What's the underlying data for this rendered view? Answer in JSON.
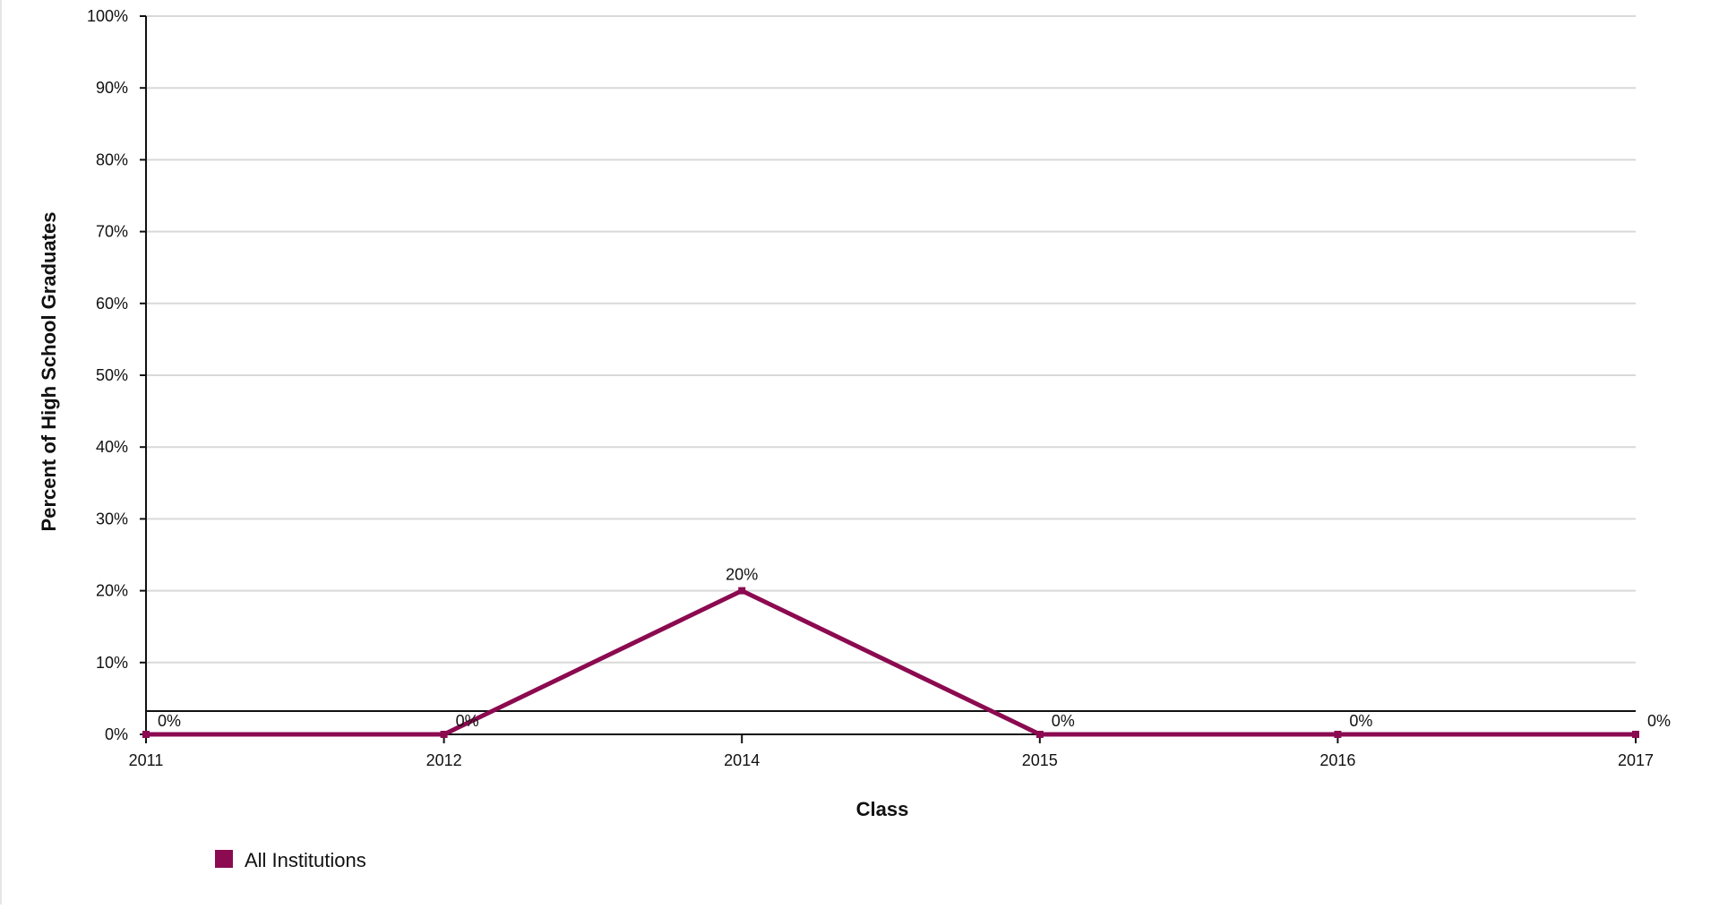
{
  "chart_data": {
    "type": "line",
    "title": "",
    "xlabel": "Class",
    "ylabel": "Percent of High School Graduates",
    "categories": [
      "2011",
      "2012",
      "2014",
      "2015",
      "2016",
      "2017"
    ],
    "series": [
      {
        "name": "All Institutions",
        "values": [
          0,
          0,
          20,
          0,
          0,
          0
        ],
        "data_labels": [
          "0%",
          "0%",
          "20%",
          "0%",
          "0%",
          "0%"
        ],
        "color": "#8b0a50"
      }
    ],
    "y_ticks": [
      "0%",
      "10%",
      "20%",
      "30%",
      "40%",
      "50%",
      "60%",
      "70%",
      "80%",
      "90%",
      "100%"
    ],
    "ylim": [
      0,
      100
    ],
    "grid": true,
    "legend_position": "bottom-left",
    "colors": {
      "series": "#8b0a50",
      "grid": "#d9d9d9",
      "axis": "#111111"
    }
  }
}
